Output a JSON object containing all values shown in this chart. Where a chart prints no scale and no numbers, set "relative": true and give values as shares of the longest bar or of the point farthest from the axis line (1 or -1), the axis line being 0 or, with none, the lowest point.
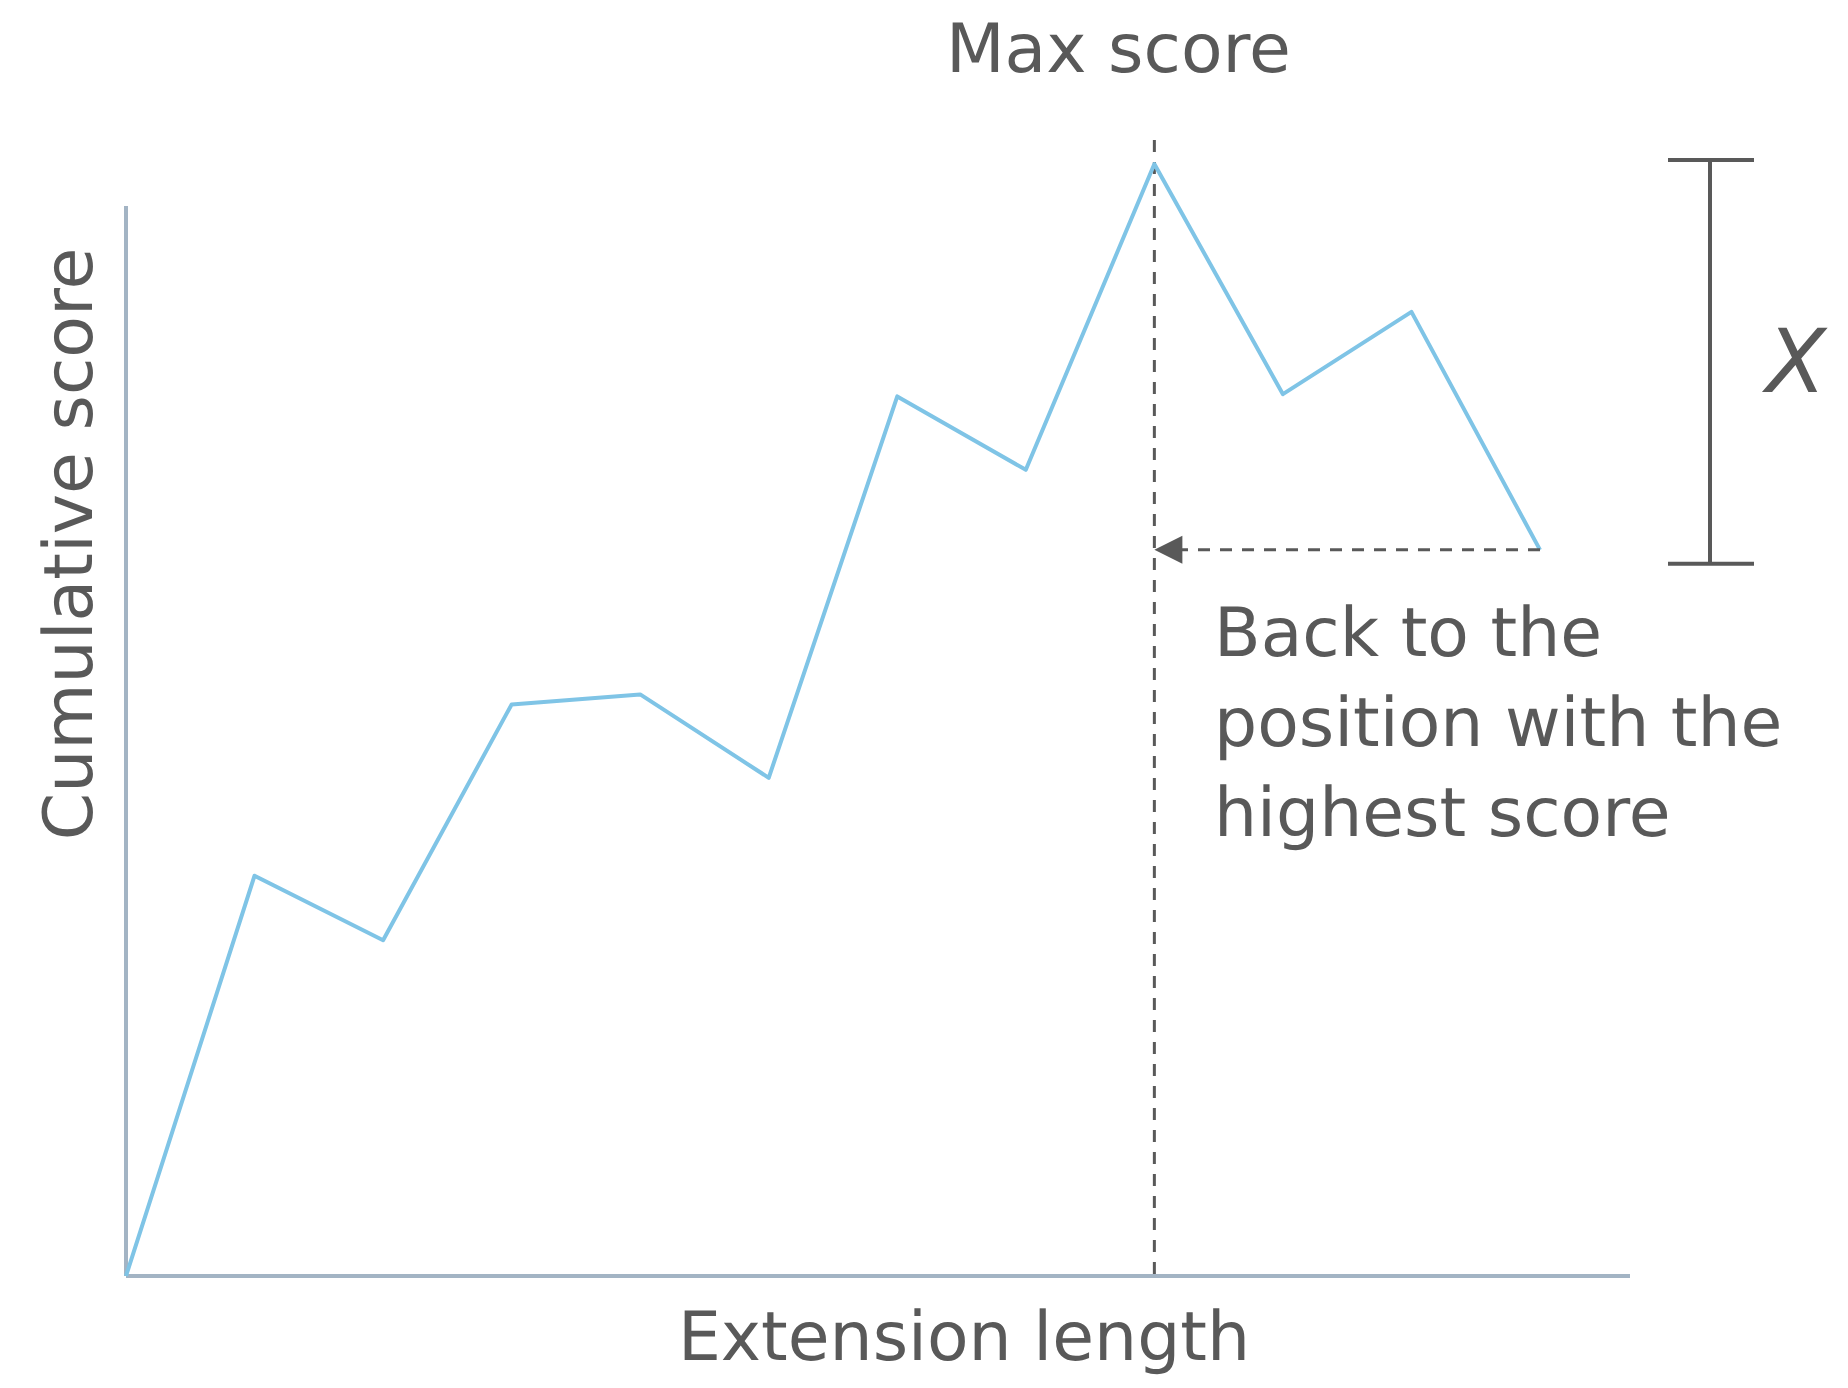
{
  "chart_data": {
    "type": "line",
    "relative": true,
    "xlabel": "Extension length",
    "ylabel": "Cumulative score",
    "categories": [
      null,
      null,
      null,
      null,
      null,
      null,
      null,
      null,
      null,
      null,
      null,
      null
    ],
    "series": [
      {
        "color": "#7fc4e6",
        "values": [
          0,
          0.36,
          0.302,
          0.514,
          0.523,
          0.448,
          0.791,
          0.725,
          1,
          0.793,
          0.867,
          0.653
        ]
      }
    ],
    "annotations": [
      "Max score",
      "Back to the position with the highest score",
      "X"
    ],
    "marker": "none",
    "line_style": "solid"
  }
}
